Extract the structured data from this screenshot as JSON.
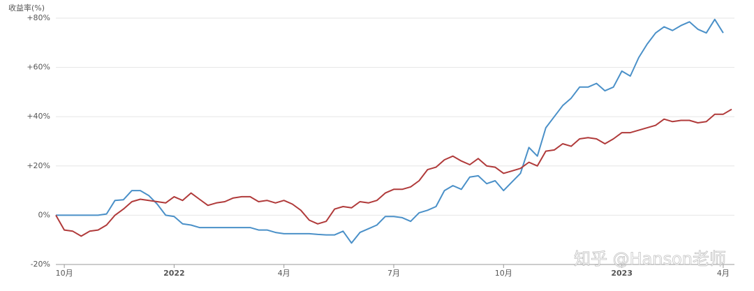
{
  "chart_data": {
    "type": "line",
    "ylabel": "收益率(%)",
    "watermark": "知乎 @Hanson老师",
    "categories": [
      null,
      "10月",
      null,
      null,
      null,
      null,
      null,
      null,
      null,
      null,
      null,
      null,
      null,
      null,
      "2022",
      null,
      null,
      null,
      null,
      null,
      null,
      null,
      null,
      null,
      null,
      null,
      null,
      "4月",
      null,
      null,
      null,
      null,
      null,
      null,
      null,
      null,
      null,
      null,
      null,
      null,
      "7月",
      null,
      null,
      null,
      null,
      null,
      null,
      null,
      null,
      null,
      null,
      null,
      null,
      "10月",
      null,
      null,
      null,
      null,
      null,
      null,
      null,
      null,
      null,
      null,
      null,
      null,
      null,
      "2023",
      null,
      null,
      null,
      null,
      null,
      null,
      null,
      null,
      null,
      null,
      null,
      "4月",
      null
    ],
    "series": [
      {
        "color": "#4a90c8",
        "values": [
          0,
          0,
          0,
          0,
          0,
          0,
          0.5,
          6,
          6.3,
          10,
          10,
          8,
          4.5,
          0,
          -0.5,
          -3.5,
          -4,
          -5,
          -5,
          -5,
          -5,
          -5,
          -5,
          -5,
          -6,
          -6,
          -7,
          -7.5,
          -7.5,
          -7.5,
          -7.5,
          -7.8,
          -8,
          -8,
          -6.5,
          -11.3,
          -7,
          -5.5,
          -4,
          -0.5,
          -0.5,
          -1,
          -2.5,
          1,
          2,
          3.5,
          10,
          12,
          10.5,
          15.5,
          16,
          12.8,
          14,
          10,
          13.5,
          17,
          27.5,
          24,
          35.5,
          40,
          44.5,
          47.5,
          52,
          52,
          53.5,
          50.5,
          52,
          58.5,
          56.5,
          64,
          69.5,
          74,
          76.5,
          75,
          77,
          78.5,
          75.5,
          74,
          79.5,
          74,
          null
        ]
      },
      {
        "color": "#b03a3a",
        "values": [
          0,
          -6,
          -6.5,
          -8.5,
          -6.5,
          -6,
          -4,
          0,
          2.5,
          5.5,
          6.5,
          6,
          5.5,
          5,
          7.5,
          6,
          9,
          6.5,
          4,
          5,
          5.5,
          7,
          7.5,
          7.5,
          5.5,
          6,
          5,
          6,
          4.5,
          2,
          -2,
          -3.5,
          -2.5,
          2.5,
          3.5,
          3,
          5.5,
          5,
          6,
          9,
          10.5,
          10.5,
          11.5,
          14,
          18.5,
          19.5,
          22.5,
          24,
          22,
          20.5,
          23,
          20,
          19.5,
          17,
          18,
          19,
          21.5,
          20,
          26,
          26.5,
          29,
          28,
          31,
          31.5,
          31,
          29,
          31,
          33.5,
          33.5,
          34.5,
          35.5,
          36.5,
          39,
          38,
          38.5,
          38.5,
          37.5,
          38,
          41,
          41,
          43
        ]
      }
    ],
    "ylim": [
      -20,
      80
    ],
    "yticks": [
      {
        "value": -20,
        "label": "-20%"
      },
      {
        "value": 0,
        "label": "0%"
      },
      {
        "value": 20,
        "label": "+20%"
      },
      {
        "value": 40,
        "label": "+40%"
      },
      {
        "value": 60,
        "label": "+60%"
      },
      {
        "value": 80,
        "label": "+80%"
      }
    ],
    "grid": true
  }
}
